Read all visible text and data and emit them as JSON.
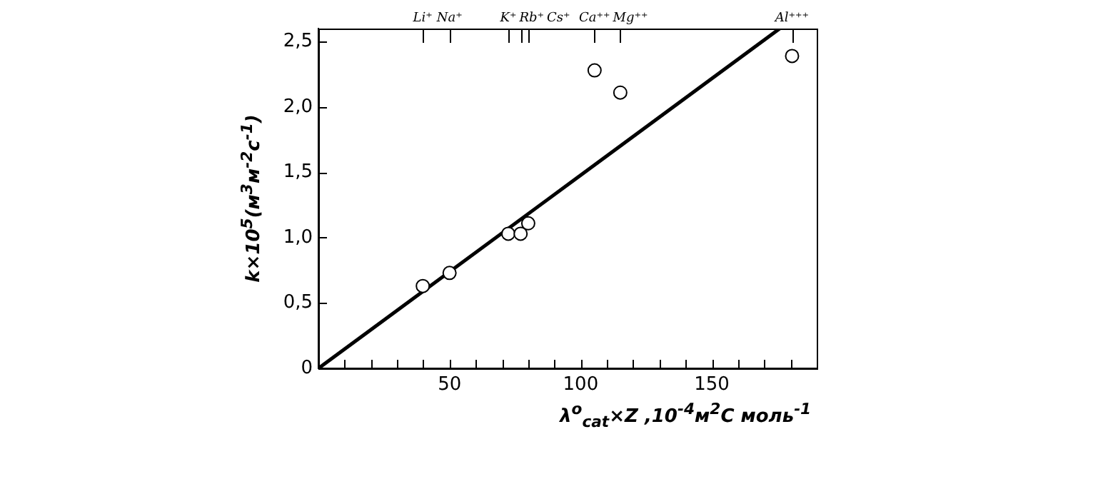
{
  "chart_data": {
    "type": "scatter",
    "xlabel": "λ$^{o}$$_{cat}$×Z ,10$^{-4}$м$^{2}$С моль$^{-1}$",
    "ylabel": "k×10$^{5}$(м$^{3}$м$^{-2}$с$^{-1}$)",
    "xlim": [
      0,
      190
    ],
    "xticks": [
      {
        "value": 10,
        "label": null
      },
      {
        "value": 20,
        "label": null
      },
      {
        "value": 30,
        "label": null
      },
      {
        "value": 40,
        "label": null
      },
      50,
      {
        "value": 60,
        "label": null
      },
      {
        "value": 70,
        "label": null
      },
      {
        "value": 80,
        "label": null
      },
      {
        "value": 90,
        "label": null
      },
      100,
      {
        "value": 110,
        "label": null
      },
      {
        "value": 120,
        "label": null
      },
      {
        "value": 130,
        "label": null
      },
      {
        "value": 140,
        "label": null
      },
      150,
      {
        "value": 160,
        "label": null
      },
      {
        "value": 170,
        "label": null
      },
      {
        "value": 180,
        "label": null
      }
    ],
    "annotations": [
      "Li⁺",
      "Na⁺",
      "K⁺",
      "Rb⁺",
      "Cs⁺",
      "Ca⁺⁺",
      "Mg⁺⁺",
      "Al⁺⁺⁺"
    ],
    "ylim": [
      0,
      2.6
    ],
    "yticks": [
      0,
      {
        "value": 0.5,
        "label": "0,5"
      },
      {
        "value": 1,
        "label": "1,0"
      },
      {
        "value": 1.5,
        "label": "1,5"
      },
      {
        "value": 2,
        "label": "2,0"
      },
      {
        "value": 2.5,
        "label": "2,5"
      }
    ],
    "legend": false,
    "series": [
      {
        "type": "scatter",
        "marker": "circle",
        "color": "#000000",
        "x": [
          39.8,
          50,
          72.4,
          77.1,
          80,
          105.3,
          115.1,
          180.6
        ],
        "values": [
          0.63,
          0.73,
          1.03,
          1.03,
          1.11,
          2.28,
          2.11,
          2.39
        ]
      },
      {
        "type": "line",
        "marker": "none",
        "line_style": "solid",
        "color": "#000000",
        "x": [
          0,
          175.9
        ],
        "values": [
          0,
          2.6
        ]
      }
    ]
  }
}
